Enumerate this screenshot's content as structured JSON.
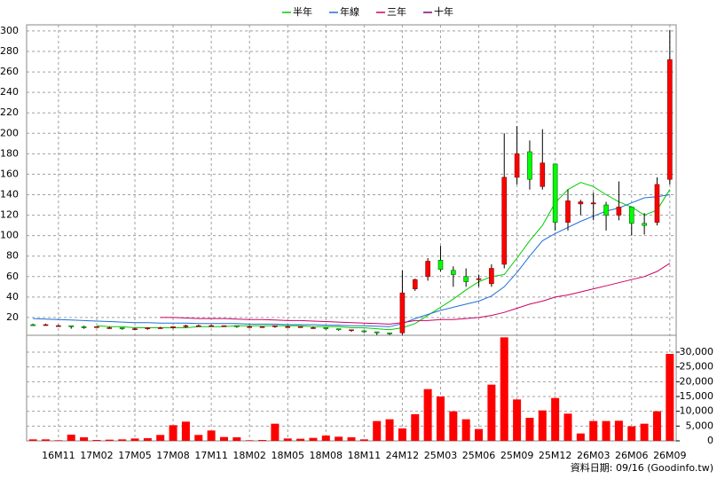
{
  "chart_data": {
    "type": "candlestick",
    "categories": [
      null,
      null,
      "16M11",
      null,
      null,
      "17M02",
      null,
      null,
      "17M05",
      null,
      null,
      "17M08",
      null,
      null,
      "17M11",
      null,
      null,
      "18M02",
      null,
      null,
      "18M05",
      null,
      null,
      "18M08",
      null,
      null,
      "18M11",
      null,
      null,
      "24M12",
      null,
      null,
      "25M03",
      null,
      null,
      "25M06",
      null,
      null,
      "25M09",
      null,
      null,
      "25M12",
      null,
      null,
      "26M03",
      null,
      null,
      "26M06",
      null,
      null,
      "26M09"
    ],
    "open": [
      13,
      13,
      12,
      12,
      11,
      11,
      10,
      10,
      9,
      9,
      10,
      10,
      11,
      12,
      12,
      12,
      12,
      11,
      11,
      11,
      11,
      11,
      10,
      10,
      9,
      8,
      7,
      6,
      5,
      5,
      48,
      60,
      76,
      66,
      60,
      57,
      53,
      72,
      157,
      182,
      148,
      170,
      113,
      131,
      131,
      130,
      120,
      128,
      112,
      113,
      155
    ],
    "high": [
      14,
      14,
      13,
      12,
      12,
      11,
      11,
      10,
      10,
      10,
      11,
      11,
      13,
      13,
      13,
      12,
      12,
      12,
      11,
      12,
      12,
      11,
      11,
      10,
      9,
      8,
      7,
      6,
      5,
      66,
      58,
      78,
      90,
      70,
      68,
      62,
      72,
      200,
      207,
      193,
      204,
      170,
      145,
      135,
      142,
      133,
      153,
      128,
      122,
      157,
      301
    ],
    "low": [
      12,
      12,
      11,
      9,
      9,
      10,
      9,
      8,
      8,
      8,
      9,
      9,
      10,
      11,
      11,
      11,
      10,
      10,
      10,
      10,
      10,
      10,
      9,
      8,
      7,
      6,
      5,
      3,
      3,
      3,
      46,
      56,
      65,
      50,
      50,
      50,
      50,
      68,
      150,
      145,
      145,
      105,
      105,
      120,
      115,
      105,
      115,
      100,
      101,
      110,
      150
    ],
    "close": [
      12,
      13,
      12,
      11,
      10,
      11,
      10,
      9,
      9,
      10,
      10,
      11,
      12,
      12,
      12,
      12,
      11,
      11,
      11,
      12,
      11,
      11,
      10,
      9,
      8,
      8,
      6,
      5,
      4,
      44,
      57,
      75,
      67,
      62,
      55,
      58,
      68,
      157,
      180,
      155,
      171,
      113,
      134,
      133,
      132,
      120,
      128,
      112,
      110,
      150,
      272
    ],
    "up_color": "#ff0000",
    "down_color": "#00ff00",
    "ylim": [
      2.6,
      306
    ],
    "yticks": [
      20,
      40,
      60,
      80,
      100,
      120,
      140,
      160,
      180,
      200,
      220,
      240,
      260,
      280,
      300
    ],
    "grid": true,
    "series": [
      {
        "name": "半年",
        "color": "#00cc00",
        "values": [
          null,
          null,
          null,
          null,
          null,
          12,
          11,
          11,
          10,
          10,
          10,
          10,
          10,
          11,
          11,
          11,
          12,
          12,
          12,
          12,
          12,
          12,
          11,
          11,
          11,
          10,
          10,
          9,
          8,
          10,
          14,
          22,
          30,
          38,
          47,
          55,
          60,
          62,
          78,
          95,
          110,
          132,
          145,
          152,
          148,
          140,
          133,
          128,
          120,
          125,
          145
        ]
      },
      {
        "name": "年線",
        "color": "#1f6fd6",
        "values": [
          19,
          18.5,
          18,
          17.5,
          17,
          16.5,
          16,
          15.5,
          15,
          15,
          14.5,
          14.5,
          14.5,
          14,
          14,
          14,
          14,
          13.5,
          13.5,
          13.5,
          13,
          13,
          13,
          12.5,
          12.5,
          12,
          12,
          11.5,
          11,
          14,
          19,
          23,
          27,
          30,
          33,
          36,
          41,
          50,
          64,
          80,
          95,
          102,
          108,
          114,
          119,
          124,
          127,
          132,
          137,
          138,
          140
        ]
      },
      {
        "name": "三年",
        "color": "#cc0066",
        "values": [
          null,
          null,
          null,
          null,
          null,
          null,
          null,
          null,
          null,
          null,
          20,
          20,
          19.5,
          19,
          19,
          19,
          18.5,
          18,
          18,
          17.5,
          17,
          17,
          16.5,
          16,
          15.5,
          15,
          14.5,
          14,
          13.5,
          15,
          17,
          17,
          18,
          18,
          19,
          20,
          22,
          25,
          29,
          33,
          36,
          40,
          42,
          45,
          48,
          51,
          54,
          57,
          60,
          65,
          73
        ]
      },
      {
        "name": "十年",
        "color": "#800080",
        "values": [
          null,
          null,
          null,
          null,
          null,
          null,
          null,
          null,
          null,
          null,
          null,
          null,
          null,
          null,
          null,
          null,
          null,
          null,
          null,
          null,
          null,
          null,
          null,
          null,
          null,
          null,
          null,
          null,
          null,
          null,
          null,
          null,
          null,
          null,
          null,
          null,
          null,
          null,
          null,
          null,
          null,
          null,
          null,
          null,
          null,
          null,
          null,
          null,
          null,
          null,
          null
        ]
      }
    ],
    "volume": {
      "color": "#ff0000",
      "values": [
        500,
        500,
        200,
        2100,
        1200,
        300,
        400,
        500,
        800,
        900,
        2000,
        5300,
        6500,
        2000,
        3500,
        1300,
        1200,
        200,
        300,
        5800,
        800,
        700,
        1000,
        1800,
        1400,
        1200,
        500,
        6700,
        7300,
        4200,
        9000,
        17500,
        15000,
        10000,
        7300,
        4000,
        19000,
        35000,
        14000,
        7800,
        10300,
        14500,
        9200,
        2500,
        6700,
        6700,
        6800,
        4900,
        5800,
        10000,
        29400
      ],
      "ylim": [
        0,
        35700
      ],
      "yticks": [
        0,
        {
          "value": 5000,
          "label": "5,000"
        },
        {
          "value": 10000,
          "label": "10,000"
        },
        {
          "value": 15000,
          "label": "15,000"
        },
        {
          "value": 20000,
          "label": "20,000"
        },
        {
          "value": 25000,
          "label": "25,000"
        },
        {
          "value": 30000,
          "label": "30,000"
        }
      ]
    },
    "source": "資料日期: 09/16 (Goodinfo.tw)"
  }
}
